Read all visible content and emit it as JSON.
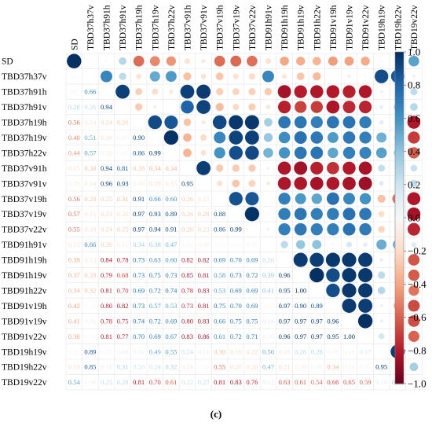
{
  "caption": "(c)",
  "chart_data": {
    "type": "heatmap",
    "style": "correlation matrix: circles in upper triangle, numeric coefficients in lower triangle",
    "variables": [
      "SD",
      "TBD37h37v",
      "TBD37h91h",
      "TBD37h91v",
      "TBD37h19h",
      "TBD37h19v",
      "TBD37h22v",
      "TBD37v91h",
      "TBD37v91v",
      "TBD37v19h",
      "TBD37v19v",
      "TBD37v22v",
      "TBD91h91v",
      "TBD91h19h",
      "TBD91h19v",
      "TBD91h22v",
      "TBD91v19h",
      "TBD91v19v",
      "TBD91v22v",
      "TBD19h19v",
      "TBD19h22v",
      "TBD19v22v"
    ],
    "colorbar": {
      "min": -1.0,
      "max": 1.0,
      "ticks": [
        "1.0",
        "0.8",
        "0.6",
        "0.4",
        "0.2",
        "0.0",
        "−0.2",
        "−0.4",
        "−0.6",
        "−0.8",
        "−1.0"
      ],
      "colors": {
        "negative": "#67001f",
        "neutral": "#f7f7f7",
        "positive": "#053061"
      }
    },
    "lower_triangle_labels": [
      [],
      [
        ".01"
      ],
      [
        ".02",
        "0.66"
      ],
      [
        "0.28",
        "0.26",
        "0.94"
      ],
      [
        "0.56",
        "0.14",
        "0.24",
        "0.26"
      ],
      [
        "0.48",
        "0.51",
        "0.18",
        "0.06",
        "0.90"
      ],
      [
        "0.44",
        "0.57",
        "0.10",
        "0.00",
        "0.86",
        "0.99"
      ],
      [
        "0.15",
        "0.30",
        "0.94",
        "0.81",
        "0.28",
        "0.34",
        "0.34"
      ],
      [
        "0.09",
        "0.14",
        "0.96",
        "0.93",
        "0.09",
        "0.19",
        "0.15",
        "0.95"
      ],
      [
        "0.56",
        "0.28",
        "0.25",
        "0.31",
        "0.91",
        "0.66",
        "0.60",
        "0.26",
        "0.15"
      ],
      [
        "0.57",
        "0.15",
        "0.23",
        "0.20",
        "0.97",
        "0.93",
        "0.89",
        "0.26",
        "0.28",
        "0.88"
      ],
      [
        "0.55",
        "0.19",
        "0.24",
        "0.25",
        "0.97",
        "0.94",
        "0.91",
        "0.26",
        "0.23",
        "0.86",
        "0.99"
      ],
      [
        "0.15",
        "0.66",
        "0.26",
        "0.11",
        "0.34",
        "0.38",
        "0.47",
        "0.04",
        "0.08",
        "0.00",
        "0.02",
        "0.05"
      ],
      [
        "0.39",
        "0.12",
        "0.84",
        "0.78",
        "0.73",
        "0.63",
        "0.60",
        "0.82",
        "0.82",
        "0.69",
        "0.70",
        "0.69",
        "0.26"
      ],
      [
        "0.37",
        "0.28",
        "0.79",
        "0.68",
        "0.73",
        "0.75",
        "0.73",
        "0.85",
        "0.81",
        "0.58",
        "0.73",
        "0.72",
        "0.39",
        "0.96"
      ],
      [
        "0.34",
        "0.32",
        "0.81",
        "0.70",
        "0.69",
        "0.72",
        "0.74",
        "0.78",
        "0.83",
        "0.53",
        "0.69",
        "0.69",
        "0.41",
        "0.95",
        "1.00"
      ],
      [
        "0.42",
        "0.01",
        "0.80",
        "0.82",
        "0.73",
        "0.57",
        "0.53",
        "0.73",
        "0.81",
        "0.75",
        "0.70",
        "0.69",
        "0.03",
        "0.97",
        "0.90",
        "0.89"
      ],
      [
        "0.41",
        "0.06",
        "0.78",
        "0.75",
        "0.74",
        "0.72",
        "0.69",
        "0.80",
        "0.83",
        "0.66",
        "0.75",
        "0.75",
        "0.16",
        "0.97",
        "0.97",
        "0.97",
        "0.96"
      ],
      [
        "0.38",
        "0.01",
        "0.81",
        "0.77",
        "0.70",
        "0.69",
        "0.67",
        "0.83",
        "0.86",
        "0.61",
        "0.72",
        "0.71",
        "0.10",
        "0.96",
        "0.97",
        "0.97",
        "0.95",
        "1.00"
      ],
      [
        "0.02",
        "0.89",
        "0.05",
        "0.08",
        "0.10",
        "0.49",
        "0.55",
        "0.24",
        "0.11",
        "0.30",
        "0.18",
        "0.22",
        "0.50",
        "0.08",
        "0.26",
        "0.28",
        "0.06",
        "0.06",
        "0.17"
      ],
      [
        "0.19",
        "0.85",
        "0.11",
        "0.31",
        "0.20",
        "0.24",
        "0.32",
        "0.14",
        "0.02",
        "0.55",
        "0.20",
        "0.20",
        "0.47",
        "0.21",
        "0.10",
        "0.08",
        "0.34",
        "0.06",
        "0.05",
        "0.95"
      ],
      [
        "0.54",
        "0.06",
        "0.25",
        "0.28",
        "0.81",
        "0.70",
        "0.61",
        "0.22",
        "0.25",
        "0.81",
        "0.83",
        "0.76",
        "0.12",
        "0.63",
        "0.61",
        "0.54",
        "0.66",
        "0.65",
        "0.59",
        "0.10",
        "0.34"
      ]
    ],
    "lower_triangle_signs": [
      [],
      [
        -1
      ],
      [
        -1,
        1
      ],
      [
        1,
        1,
        1
      ],
      [
        -1,
        -1,
        -1,
        -1
      ],
      [
        -1,
        1,
        -1,
        -1,
        1
      ],
      [
        -1,
        1,
        -1,
        1,
        1,
        1
      ],
      [
        -1,
        -1,
        1,
        1,
        -1,
        -1,
        -1
      ],
      [
        -1,
        -1,
        1,
        1,
        -1,
        -1,
        -1,
        1
      ],
      [
        -1,
        -1,
        -1,
        -1,
        1,
        1,
        1,
        -1,
        -1
      ],
      [
        -1,
        -1,
        -1,
        -1,
        1,
        1,
        1,
        -1,
        -1,
        1
      ],
      [
        -1,
        -1,
        -1,
        -1,
        1,
        1,
        1,
        -1,
        -1,
        1,
        1
      ],
      [
        -1,
        1,
        -1,
        -1,
        1,
        1,
        1,
        -1,
        -1,
        1,
        1,
        1
      ],
      [
        -1,
        -1,
        -1,
        -1,
        1,
        1,
        1,
        -1,
        -1,
        1,
        1,
        1,
        1
      ],
      [
        -1,
        -1,
        -1,
        -1,
        1,
        1,
        1,
        -1,
        -1,
        1,
        1,
        1,
        1,
        1
      ],
      [
        -1,
        -1,
        -1,
        -1,
        1,
        1,
        1,
        -1,
        -1,
        1,
        1,
        1,
        1,
        1,
        1
      ],
      [
        -1,
        -1,
        -1,
        -1,
        1,
        1,
        1,
        -1,
        -1,
        1,
        1,
        1,
        -1,
        1,
        1,
        1
      ],
      [
        -1,
        -1,
        -1,
        -1,
        1,
        1,
        1,
        -1,
        -1,
        1,
        1,
        1,
        1,
        1,
        1,
        1,
        1
      ],
      [
        -1,
        -1,
        -1,
        -1,
        1,
        1,
        1,
        -1,
        -1,
        1,
        1,
        1,
        1,
        1,
        1,
        1,
        1,
        1
      ],
      [
        -1,
        1,
        -1,
        1,
        1,
        1,
        1,
        1,
        1,
        -1,
        -1,
        -1,
        1,
        1,
        1,
        1,
        1,
        1,
        1
      ],
      [
        -1,
        1,
        -1,
        1,
        1,
        1,
        1,
        -1,
        -1,
        -1,
        -1,
        -1,
        1,
        -1,
        -1,
        1,
        -1,
        -1,
        1,
        1
      ],
      [
        1,
        1,
        1,
        1,
        -1,
        -1,
        -1,
        1,
        1,
        -1,
        -1,
        -1,
        1,
        -1,
        -1,
        -1,
        -1,
        -1,
        -1,
        1,
        1
      ]
    ]
  }
}
